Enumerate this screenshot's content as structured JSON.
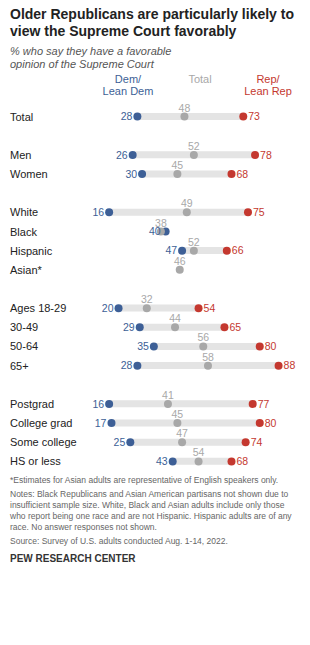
{
  "chart_data": {
    "type": "dot",
    "title": "Older Republicans are particularly likely to view the Supreme Court favorably",
    "subtitle": "% who say they have a favorable opinion of the Supreme Court",
    "orientation": "horizontal",
    "data_labels": true,
    "tick_labels": "y",
    "grid": false,
    "xlim": [
      10,
      92
    ],
    "categories": [
      "Total",
      null,
      "Men",
      "Women",
      null,
      "White",
      "Black",
      "Hispanic",
      "Asian*",
      null,
      "Ages 18-29",
      "30-49",
      "50-64",
      "65+",
      null,
      "Postgrad",
      "College grad",
      "Some college",
      "HS or less"
    ],
    "series": [
      {
        "name": "Dem/Lean Dem",
        "color": "#3d5f96",
        "values": [
          28,
          null,
          26,
          30,
          null,
          16,
          40,
          47,
          null,
          null,
          20,
          29,
          35,
          28,
          null,
          16,
          17,
          25,
          43
        ]
      },
      {
        "name": "Total",
        "color": "#a8a8a8",
        "values": [
          48,
          null,
          52,
          45,
          null,
          49,
          38,
          52,
          46,
          null,
          32,
          44,
          56,
          58,
          null,
          41,
          45,
          47,
          54
        ]
      },
      {
        "name": "Rep/Lean Rep",
        "color": "#c4382f",
        "values": [
          73,
          null,
          78,
          68,
          null,
          75,
          null,
          66,
          null,
          null,
          54,
          65,
          80,
          88,
          null,
          77,
          80,
          74,
          68
        ]
      }
    ],
    "notes": [
      "*Estimates for Asian adults are representative of English speakers only.",
      "Notes: Black Republicans and Asian American partisans not shown due to insufficient sample size. White, Black and Asian adults include only those who report being one race and are not Hispanic. Hispanic adults are of any race. No answer responses not shown.",
      "Source: Survey of U.S. adults conducted Aug. 1-14, 2022."
    ],
    "credit": "PEW RESEARCH CENTER"
  }
}
